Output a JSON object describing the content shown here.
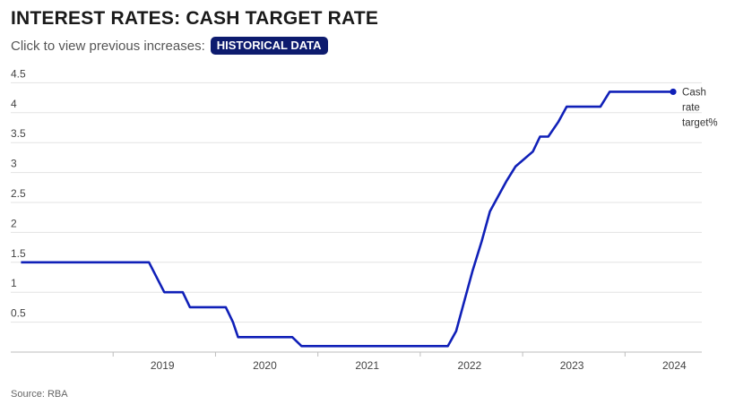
{
  "header": {
    "title": "INTEREST RATES: CASH TARGET RATE",
    "subtitle": "Click to view previous increases:",
    "button_label": "HISTORICAL DATA"
  },
  "footer": {
    "source": "Source: RBA"
  },
  "colors": {
    "line": "#1020b8",
    "button_bg": "#0d1b6e",
    "grid": "#e3e3e3"
  },
  "chart_data": {
    "type": "line",
    "title": "INTEREST RATES: CASH TARGET RATE",
    "xlabel": "",
    "ylabel": "",
    "x_ticks": [
      "2019",
      "2020",
      "2021",
      "2022",
      "2023",
      "2024"
    ],
    "y_ticks": [
      "0.5",
      "1",
      "1.5",
      "2",
      "2.5",
      "3",
      "3.5",
      "4",
      "4.5"
    ],
    "ylim": [
      0,
      4.5
    ],
    "xlim": [
      2018.0,
      2024.75
    ],
    "grid": true,
    "legend": "end-of-line label",
    "series": [
      {
        "name": "Cash rate target%",
        "points": [
          [
            2018.1,
            1.5
          ],
          [
            2019.35,
            1.5
          ],
          [
            2019.5,
            1.0
          ],
          [
            2019.68,
            1.0
          ],
          [
            2019.75,
            0.75
          ],
          [
            2020.1,
            0.75
          ],
          [
            2020.17,
            0.5
          ],
          [
            2020.22,
            0.25
          ],
          [
            2020.75,
            0.25
          ],
          [
            2020.84,
            0.1
          ],
          [
            2022.27,
            0.1
          ],
          [
            2022.35,
            0.35
          ],
          [
            2022.43,
            0.85
          ],
          [
            2022.51,
            1.35
          ],
          [
            2022.6,
            1.85
          ],
          [
            2022.68,
            2.35
          ],
          [
            2022.76,
            2.6
          ],
          [
            2022.84,
            2.85
          ],
          [
            2022.93,
            3.1
          ],
          [
            2023.1,
            3.35
          ],
          [
            2023.17,
            3.6
          ],
          [
            2023.25,
            3.6
          ],
          [
            2023.35,
            3.85
          ],
          [
            2023.43,
            4.1
          ],
          [
            2023.76,
            4.1
          ],
          [
            2023.85,
            4.35
          ],
          [
            2024.47,
            4.35
          ]
        ]
      }
    ]
  }
}
